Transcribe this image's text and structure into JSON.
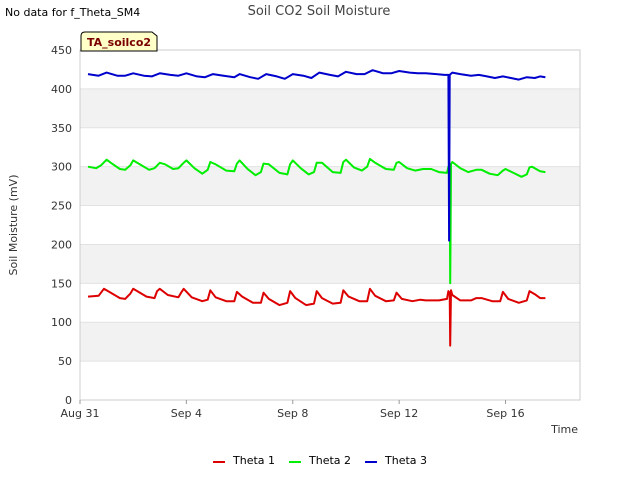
{
  "notice": "No data for f_Theta_SM4",
  "badge": "TA_soilco2",
  "chart_data": {
    "type": "line",
    "title": "Soil CO2 Soil Moisture",
    "xlabel": "Time",
    "ylabel": "Soil Moisture (mV)",
    "ylim": [
      0,
      450
    ],
    "xlim": [
      0,
      18.8
    ],
    "yticks": [
      0,
      50,
      100,
      150,
      200,
      250,
      300,
      350,
      400,
      450
    ],
    "xticks": [
      {
        "label": "Aug 31",
        "day": 0
      },
      {
        "label": "Sep 4",
        "day": 4
      },
      {
        "label": "Sep 8",
        "day": 8
      },
      {
        "label": "Sep 12",
        "day": 12
      },
      {
        "label": "Sep 16",
        "day": 16
      }
    ],
    "grid": true,
    "legend_position": "bottom-center",
    "series": [
      {
        "name": "Theta 1",
        "color": "#dd0000",
        "points": [
          [
            0.3,
            133
          ],
          [
            0.7,
            134
          ],
          [
            0.9,
            143
          ],
          [
            1.1,
            139
          ],
          [
            1.5,
            131
          ],
          [
            1.7,
            130
          ],
          [
            1.9,
            137
          ],
          [
            2.0,
            143
          ],
          [
            2.2,
            139
          ],
          [
            2.5,
            133
          ],
          [
            2.8,
            131
          ],
          [
            2.9,
            140
          ],
          [
            3.0,
            143
          ],
          [
            3.3,
            135
          ],
          [
            3.7,
            132
          ],
          [
            3.8,
            138
          ],
          [
            3.9,
            143
          ],
          [
            4.2,
            132
          ],
          [
            4.6,
            127
          ],
          [
            4.8,
            129
          ],
          [
            4.9,
            141
          ],
          [
            5.1,
            132
          ],
          [
            5.5,
            127
          ],
          [
            5.8,
            127
          ],
          [
            5.9,
            139
          ],
          [
            6.1,
            133
          ],
          [
            6.5,
            125
          ],
          [
            6.8,
            125
          ],
          [
            6.9,
            138
          ],
          [
            7.1,
            130
          ],
          [
            7.5,
            122
          ],
          [
            7.8,
            125
          ],
          [
            7.9,
            140
          ],
          [
            8.1,
            131
          ],
          [
            8.5,
            122
          ],
          [
            8.8,
            124
          ],
          [
            8.9,
            140
          ],
          [
            9.1,
            131
          ],
          [
            9.5,
            124
          ],
          [
            9.8,
            125
          ],
          [
            9.9,
            141
          ],
          [
            10.1,
            133
          ],
          [
            10.5,
            127
          ],
          [
            10.8,
            127
          ],
          [
            10.9,
            143
          ],
          [
            11.1,
            134
          ],
          [
            11.5,
            127
          ],
          [
            11.8,
            128
          ],
          [
            11.9,
            138
          ],
          [
            12.1,
            130
          ],
          [
            12.5,
            127
          ],
          [
            12.8,
            129
          ],
          [
            13.0,
            128
          ],
          [
            13.5,
            128
          ],
          [
            13.8,
            130
          ],
          [
            13.85,
            140
          ],
          [
            13.9,
            138
          ],
          [
            13.92,
            70
          ],
          [
            13.95,
            141
          ],
          [
            14.0,
            135
          ],
          [
            14.3,
            128
          ],
          [
            14.7,
            128
          ],
          [
            14.9,
            131
          ],
          [
            15.1,
            131
          ],
          [
            15.5,
            127
          ],
          [
            15.8,
            127
          ],
          [
            15.9,
            139
          ],
          [
            16.1,
            130
          ],
          [
            16.5,
            125
          ],
          [
            16.8,
            128
          ],
          [
            16.9,
            140
          ],
          [
            17.1,
            136
          ],
          [
            17.3,
            131
          ],
          [
            17.5,
            131
          ]
        ]
      },
      {
        "name": "Theta 2",
        "color": "#00ee00",
        "points": [
          [
            0.3,
            300
          ],
          [
            0.6,
            298
          ],
          [
            0.8,
            302
          ],
          [
            1.0,
            309
          ],
          [
            1.2,
            304
          ],
          [
            1.5,
            297
          ],
          [
            1.7,
            296
          ],
          [
            1.9,
            302
          ],
          [
            2.0,
            308
          ],
          [
            2.3,
            302
          ],
          [
            2.6,
            296
          ],
          [
            2.8,
            298
          ],
          [
            3.0,
            305
          ],
          [
            3.2,
            303
          ],
          [
            3.5,
            297
          ],
          [
            3.7,
            298
          ],
          [
            3.9,
            305
          ],
          [
            4.0,
            308
          ],
          [
            4.3,
            298
          ],
          [
            4.6,
            291
          ],
          [
            4.8,
            296
          ],
          [
            4.9,
            306
          ],
          [
            5.1,
            303
          ],
          [
            5.5,
            295
          ],
          [
            5.8,
            294
          ],
          [
            5.9,
            304
          ],
          [
            6.0,
            308
          ],
          [
            6.3,
            297
          ],
          [
            6.6,
            289
          ],
          [
            6.8,
            293
          ],
          [
            6.9,
            304
          ],
          [
            7.1,
            303
          ],
          [
            7.5,
            292
          ],
          [
            7.8,
            290
          ],
          [
            7.9,
            303
          ],
          [
            8.0,
            308
          ],
          [
            8.3,
            298
          ],
          [
            8.6,
            290
          ],
          [
            8.8,
            293
          ],
          [
            8.9,
            305
          ],
          [
            9.1,
            305
          ],
          [
            9.5,
            293
          ],
          [
            9.8,
            292
          ],
          [
            9.9,
            306
          ],
          [
            10.0,
            309
          ],
          [
            10.3,
            299
          ],
          [
            10.6,
            295
          ],
          [
            10.8,
            300
          ],
          [
            10.9,
            310
          ],
          [
            11.1,
            305
          ],
          [
            11.5,
            297
          ],
          [
            11.8,
            296
          ],
          [
            11.9,
            305
          ],
          [
            12.0,
            306
          ],
          [
            12.3,
            298
          ],
          [
            12.6,
            295
          ],
          [
            12.9,
            297
          ],
          [
            13.2,
            297
          ],
          [
            13.5,
            293
          ],
          [
            13.8,
            292
          ],
          [
            13.85,
            300
          ],
          [
            13.9,
            298
          ],
          [
            13.92,
            150
          ],
          [
            13.93,
            200
          ],
          [
            13.95,
            303
          ],
          [
            14.0,
            306
          ],
          [
            14.3,
            298
          ],
          [
            14.6,
            293
          ],
          [
            14.9,
            296
          ],
          [
            15.1,
            296
          ],
          [
            15.4,
            291
          ],
          [
            15.7,
            289
          ],
          [
            15.9,
            295
          ],
          [
            16.0,
            297
          ],
          [
            16.3,
            292
          ],
          [
            16.6,
            287
          ],
          [
            16.8,
            290
          ],
          [
            16.9,
            299
          ],
          [
            17.0,
            300
          ],
          [
            17.3,
            294
          ],
          [
            17.5,
            293
          ]
        ]
      },
      {
        "name": "Theta 3",
        "color": "#0000cc",
        "points": [
          [
            0.3,
            419
          ],
          [
            0.7,
            417
          ],
          [
            1.0,
            421
          ],
          [
            1.4,
            417
          ],
          [
            1.7,
            417
          ],
          [
            2.0,
            420
          ],
          [
            2.4,
            417
          ],
          [
            2.7,
            416
          ],
          [
            3.0,
            420
          ],
          [
            3.4,
            418
          ],
          [
            3.7,
            417
          ],
          [
            4.0,
            420
          ],
          [
            4.4,
            416
          ],
          [
            4.7,
            415
          ],
          [
            5.0,
            419
          ],
          [
            5.4,
            417
          ],
          [
            5.8,
            415
          ],
          [
            6.0,
            419
          ],
          [
            6.4,
            415
          ],
          [
            6.7,
            413
          ],
          [
            7.0,
            419
          ],
          [
            7.4,
            416
          ],
          [
            7.7,
            413
          ],
          [
            8.0,
            419
          ],
          [
            8.4,
            417
          ],
          [
            8.7,
            414
          ],
          [
            9.0,
            421
          ],
          [
            9.4,
            418
          ],
          [
            9.7,
            416
          ],
          [
            10.0,
            422
          ],
          [
            10.4,
            419
          ],
          [
            10.7,
            419
          ],
          [
            11.0,
            424
          ],
          [
            11.4,
            420
          ],
          [
            11.7,
            420
          ],
          [
            12.0,
            423
          ],
          [
            12.4,
            421
          ],
          [
            12.7,
            420
          ],
          [
            13.0,
            420
          ],
          [
            13.4,
            419
          ],
          [
            13.7,
            418
          ],
          [
            13.85,
            418
          ],
          [
            13.88,
            205
          ],
          [
            13.9,
            418
          ],
          [
            14.0,
            421
          ],
          [
            14.3,
            419
          ],
          [
            14.7,
            417
          ],
          [
            15.0,
            418
          ],
          [
            15.3,
            416
          ],
          [
            15.6,
            414
          ],
          [
            15.9,
            416
          ],
          [
            16.2,
            414
          ],
          [
            16.5,
            412
          ],
          [
            16.8,
            415
          ],
          [
            17.1,
            414
          ],
          [
            17.3,
            416
          ],
          [
            17.5,
            415
          ]
        ]
      }
    ]
  }
}
